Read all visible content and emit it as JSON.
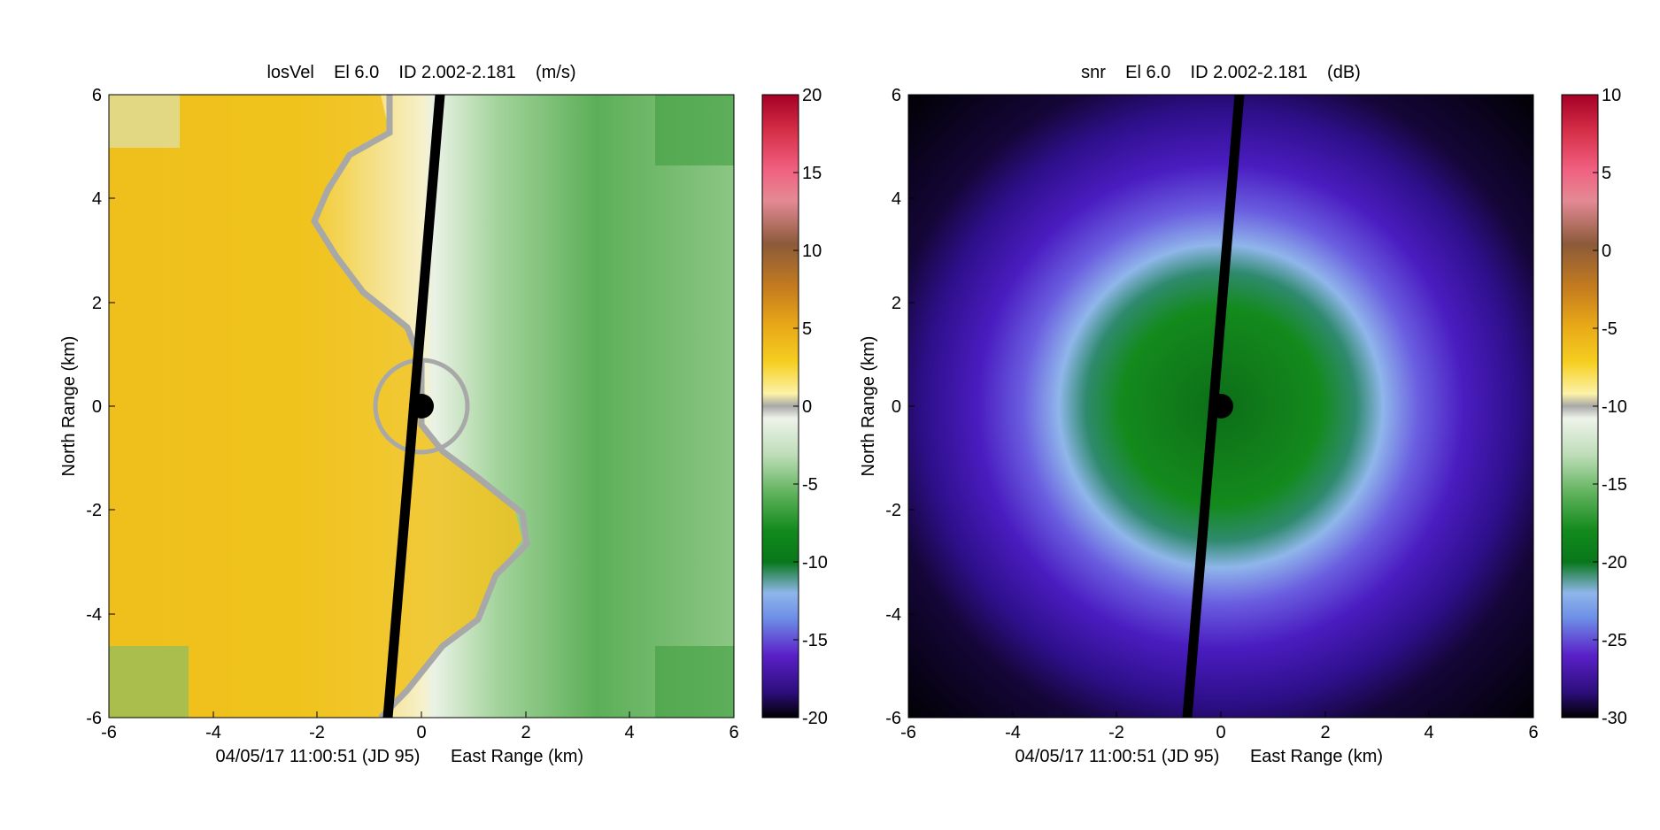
{
  "chart_data": [
    {
      "type": "heatmap",
      "title": "losVel    El 6.0    ID 2.002-2.181    (m/s)",
      "xlabel": "East Range (km)",
      "ylabel": "North Range (km)",
      "timestamp": "04/05/17 11:00:51 (JD 95)",
      "xlim": [
        -6,
        6
      ],
      "ylim": [
        -6,
        6
      ],
      "xticks": [
        -6,
        -4,
        -2,
        0,
        2,
        4,
        6
      ],
      "yticks": [
        -6,
        -4,
        -2,
        0,
        2,
        4,
        6
      ],
      "colorbar": {
        "ticks": [
          20,
          15,
          10,
          5,
          0,
          -5,
          -10,
          -15,
          -20
        ],
        "range": [
          -20,
          20
        ]
      },
      "field": "radial velocity: positive (yellow, approx +4 to +6 m/s) in western half, negative (green, approx -3 to -7 m/s) in eastern half, zero line shown in gray",
      "blanked_radial_azimuth_deg": 5
    },
    {
      "type": "heatmap",
      "title": "snr    El 6.0    ID 2.002-2.181    (dB)",
      "xlabel": "East Range (km)",
      "ylabel": "North Range (km)",
      "timestamp": "04/05/17 11:00:51 (JD 95)",
      "xlim": [
        -6,
        6
      ],
      "ylim": [
        -6,
        6
      ],
      "xticks": [
        -6,
        -4,
        -2,
        0,
        2,
        4,
        6
      ],
      "yticks": [
        -6,
        -4,
        -2,
        0,
        2,
        4,
        6
      ],
      "colorbar": {
        "ticks": [
          10,
          5,
          0,
          -5,
          -10,
          -15,
          -20,
          -25,
          -30
        ],
        "range": [
          -30,
          10
        ]
      },
      "field": "signal-to-noise ratio decreasing with range: approx -20 dB (green) within 2 km, -25 dB (light blue) near 2.5 km, -27 to -30 dB (purple to black) beyond",
      "blanked_radial_azimuth_deg": 5
    }
  ],
  "colors": {
    "background": "#ffffff",
    "axis": "#000000",
    "center_marker": "#000000"
  }
}
